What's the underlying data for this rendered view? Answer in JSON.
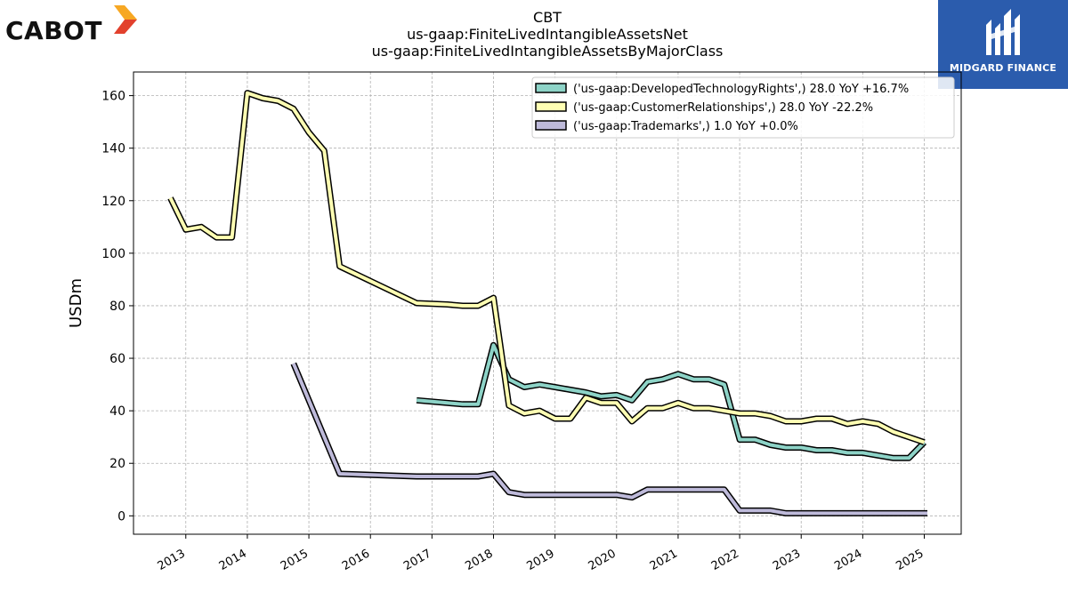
{
  "header": {
    "title_line1": "CBT",
    "title_line2": "us-gaap:FiniteLivedIntangibleAssetsNet",
    "title_line3": "us-gaap:FiniteLivedIntangibleAssetsByMajorClass"
  },
  "logos": {
    "left": {
      "text": "CABOT",
      "mark_colors": [
        "#f7a823",
        "#e2412d"
      ]
    },
    "right": {
      "text": "MIDGARD FINANCE",
      "background": "#2b5cad"
    }
  },
  "chart_data": {
    "type": "line",
    "title": "CBT\nus-gaap:FiniteLivedIntangibleAssetsNet\nus-gaap:FiniteLivedIntangibleAssetsByMajorClass",
    "xlabel": "",
    "ylabel": "USDm",
    "xlim": [
      2012.15,
      2025.6
    ],
    "ylim": [
      -7,
      169
    ],
    "x_ticks": [
      2013,
      2014,
      2015,
      2016,
      2017,
      2018,
      2019,
      2020,
      2021,
      2022,
      2023,
      2024,
      2025
    ],
    "x_tick_labels": [
      "2013",
      "2014",
      "2015",
      "2016",
      "2017",
      "2018",
      "2019",
      "2020",
      "2021",
      "2022",
      "2023",
      "2024",
      "2025"
    ],
    "y_ticks": [
      0,
      20,
      40,
      60,
      80,
      100,
      120,
      140,
      160
    ],
    "y_tick_labels": [
      "0",
      "20",
      "40",
      "60",
      "80",
      "100",
      "120",
      "140",
      "160"
    ],
    "grid": true,
    "legend_placement": "top-right",
    "series": [
      {
        "name": "('us-gaap:DevelopedTechnologyRights',) 28.0 YoY +16.7%",
        "color": "#8dd3c7",
        "points": [
          [
            2016.75,
            44
          ],
          [
            2017.25,
            43
          ],
          [
            2017.5,
            42.5
          ],
          [
            2017.75,
            42.5
          ],
          [
            2018.0,
            65
          ],
          [
            2018.25,
            52
          ],
          [
            2018.5,
            49
          ],
          [
            2018.75,
            50
          ],
          [
            2019.0,
            49
          ],
          [
            2019.25,
            48
          ],
          [
            2019.5,
            47
          ],
          [
            2019.75,
            45.5
          ],
          [
            2020.0,
            46
          ],
          [
            2020.25,
            44
          ],
          [
            2020.5,
            51
          ],
          [
            2020.75,
            52
          ],
          [
            2021.0,
            54
          ],
          [
            2021.25,
            52
          ],
          [
            2021.5,
            52
          ],
          [
            2021.75,
            50
          ],
          [
            2022.0,
            29
          ],
          [
            2022.25,
            29
          ],
          [
            2022.5,
            27
          ],
          [
            2022.75,
            26
          ],
          [
            2023.0,
            26
          ],
          [
            2023.25,
            25
          ],
          [
            2023.5,
            25
          ],
          [
            2023.75,
            24
          ],
          [
            2024.0,
            24
          ],
          [
            2024.25,
            23
          ],
          [
            2024.5,
            22
          ],
          [
            2024.75,
            22
          ],
          [
            2025.0,
            28
          ]
        ]
      },
      {
        "name": "('us-gaap:CustomerRelationships',) 28.0 YoY -22.2%",
        "color": "#ffffb3",
        "points": [
          [
            2012.75,
            121
          ],
          [
            2013.0,
            109
          ],
          [
            2013.25,
            110
          ],
          [
            2013.5,
            106
          ],
          [
            2013.75,
            106
          ],
          [
            2014.0,
            161
          ],
          [
            2014.25,
            159
          ],
          [
            2014.5,
            158
          ],
          [
            2014.75,
            155
          ],
          [
            2015.0,
            146
          ],
          [
            2015.25,
            139
          ],
          [
            2015.5,
            95
          ],
          [
            2016.75,
            81
          ],
          [
            2017.25,
            80.5
          ],
          [
            2017.5,
            80
          ],
          [
            2017.75,
            80
          ],
          [
            2018.0,
            83
          ],
          [
            2018.25,
            42
          ],
          [
            2018.5,
            39
          ],
          [
            2018.75,
            40
          ],
          [
            2019.0,
            37
          ],
          [
            2019.25,
            37
          ],
          [
            2019.5,
            45
          ],
          [
            2019.75,
            43
          ],
          [
            2020.0,
            43
          ],
          [
            2020.25,
            36
          ],
          [
            2020.5,
            41
          ],
          [
            2020.75,
            41
          ],
          [
            2021.0,
            43
          ],
          [
            2021.25,
            41
          ],
          [
            2021.5,
            41
          ],
          [
            2021.75,
            40
          ],
          [
            2022.0,
            39
          ],
          [
            2022.25,
            39
          ],
          [
            2022.5,
            38
          ],
          [
            2022.75,
            36
          ],
          [
            2023.0,
            36
          ],
          [
            2023.25,
            37
          ],
          [
            2023.5,
            37
          ],
          [
            2023.75,
            35
          ],
          [
            2024.0,
            36
          ],
          [
            2024.25,
            35
          ],
          [
            2024.5,
            32
          ],
          [
            2024.75,
            30
          ],
          [
            2025.0,
            28
          ]
        ]
      },
      {
        "name": "('us-gaap:Trademarks',) 1.0 YoY +0.0%",
        "color": "#bebada",
        "points": [
          [
            2014.75,
            58
          ],
          [
            2015.5,
            16
          ],
          [
            2016.75,
            15
          ],
          [
            2017.25,
            15
          ],
          [
            2017.5,
            15
          ],
          [
            2017.75,
            15
          ],
          [
            2018.0,
            16
          ],
          [
            2018.25,
            9
          ],
          [
            2018.5,
            8
          ],
          [
            2018.75,
            8
          ],
          [
            2019.0,
            8
          ],
          [
            2019.25,
            8
          ],
          [
            2019.5,
            8
          ],
          [
            2019.75,
            8
          ],
          [
            2020.0,
            8
          ],
          [
            2020.25,
            7
          ],
          [
            2020.5,
            10
          ],
          [
            2020.75,
            10
          ],
          [
            2021.0,
            10
          ],
          [
            2021.25,
            10
          ],
          [
            2021.5,
            10
          ],
          [
            2021.75,
            10
          ],
          [
            2022.0,
            2
          ],
          [
            2022.25,
            2
          ],
          [
            2022.5,
            2
          ],
          [
            2022.75,
            1
          ],
          [
            2023.0,
            1
          ],
          [
            2023.25,
            1
          ],
          [
            2023.5,
            1
          ],
          [
            2023.75,
            1
          ],
          [
            2024.0,
            1
          ],
          [
            2024.25,
            1
          ],
          [
            2024.5,
            1
          ],
          [
            2024.75,
            1
          ],
          [
            2025.05,
            1
          ]
        ]
      }
    ]
  }
}
